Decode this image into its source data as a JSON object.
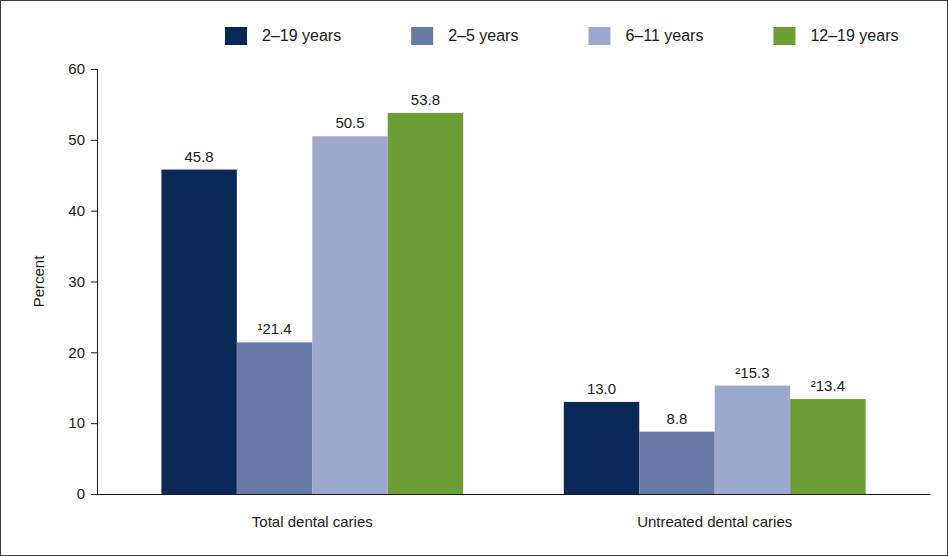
{
  "chart_data": {
    "type": "bar",
    "categories": [
      "Total dental caries",
      "Untreated dental caries"
    ],
    "series": [
      {
        "name": "2–19 years",
        "color": "#0a2857",
        "values": [
          45.8,
          13.0
        ],
        "value_labels": [
          "45.8",
          "13.0"
        ]
      },
      {
        "name": "2–5 years",
        "color": "#6779a5",
        "values": [
          21.4,
          8.8
        ],
        "value_labels": [
          "¹21.4",
          "8.8"
        ]
      },
      {
        "name": "6–11 years",
        "color": "#9ca8cc",
        "values": [
          50.5,
          15.3
        ],
        "value_labels": [
          "50.5",
          "²15.3"
        ]
      },
      {
        "name": "12–19 years",
        "color": "#6d9e35",
        "values": [
          53.8,
          13.4
        ],
        "value_labels": [
          "53.8",
          "²13.4"
        ]
      }
    ],
    "ylabel": "Percent",
    "ylim": [
      0,
      60
    ],
    "yticks": [
      0,
      10,
      20,
      30,
      40,
      50,
      60
    ],
    "grid": false,
    "legend": "top",
    "data_labels": true
  }
}
